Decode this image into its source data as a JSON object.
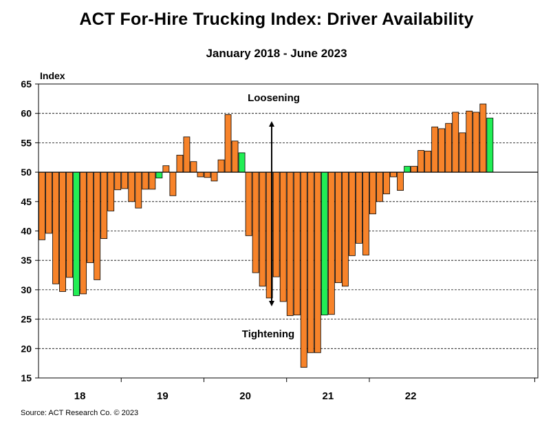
{
  "chart_data": {
    "type": "bar",
    "title": "ACT For-Hire Trucking Index: Driver Availability",
    "subtitle": "January 2018 - June 2023",
    "ylabel": "Index",
    "xlabel": "",
    "ylim": [
      15,
      65
    ],
    "yticks": [
      15,
      20,
      25,
      30,
      35,
      40,
      45,
      50,
      55,
      60,
      65
    ],
    "baseline": 50,
    "year_labels": [
      "18",
      "19",
      "20",
      "21",
      "22"
    ],
    "grid": true,
    "colors": {
      "regular": "#f7832a",
      "highlight": "#22ee55",
      "axis": "#000000",
      "grid": "#000000"
    },
    "annotations": {
      "up": "Loosening",
      "down": "Tightening"
    },
    "values": [
      38.5,
      39.6,
      31.0,
      29.7,
      32.1,
      29.0,
      29.3,
      34.6,
      31.7,
      38.7,
      43.4,
      47.0,
      47.2,
      45.0,
      43.9,
      47.1,
      47.1,
      49.0,
      51.1,
      46.0,
      52.9,
      56.0,
      51.8,
      49.2,
      49.1,
      48.5,
      52.1,
      59.8,
      55.3,
      53.3,
      39.2,
      32.9,
      30.6,
      28.6,
      32.2,
      28.0,
      25.6,
      25.7,
      16.8,
      19.3,
      19.3,
      25.7,
      25.8,
      31.2,
      30.6,
      35.8,
      37.9,
      35.9,
      42.9,
      45.0,
      46.3,
      49.2,
      46.9,
      51.0,
      51.0,
      53.7,
      53.6,
      57.7,
      57.4,
      58.3,
      60.2,
      56.7,
      60.4,
      60.2,
      61.6,
      59.2
    ],
    "highlight_indices": [
      5,
      17,
      29,
      41,
      53,
      65
    ]
  },
  "source": "Source: ACT Research Co. © 2023"
}
